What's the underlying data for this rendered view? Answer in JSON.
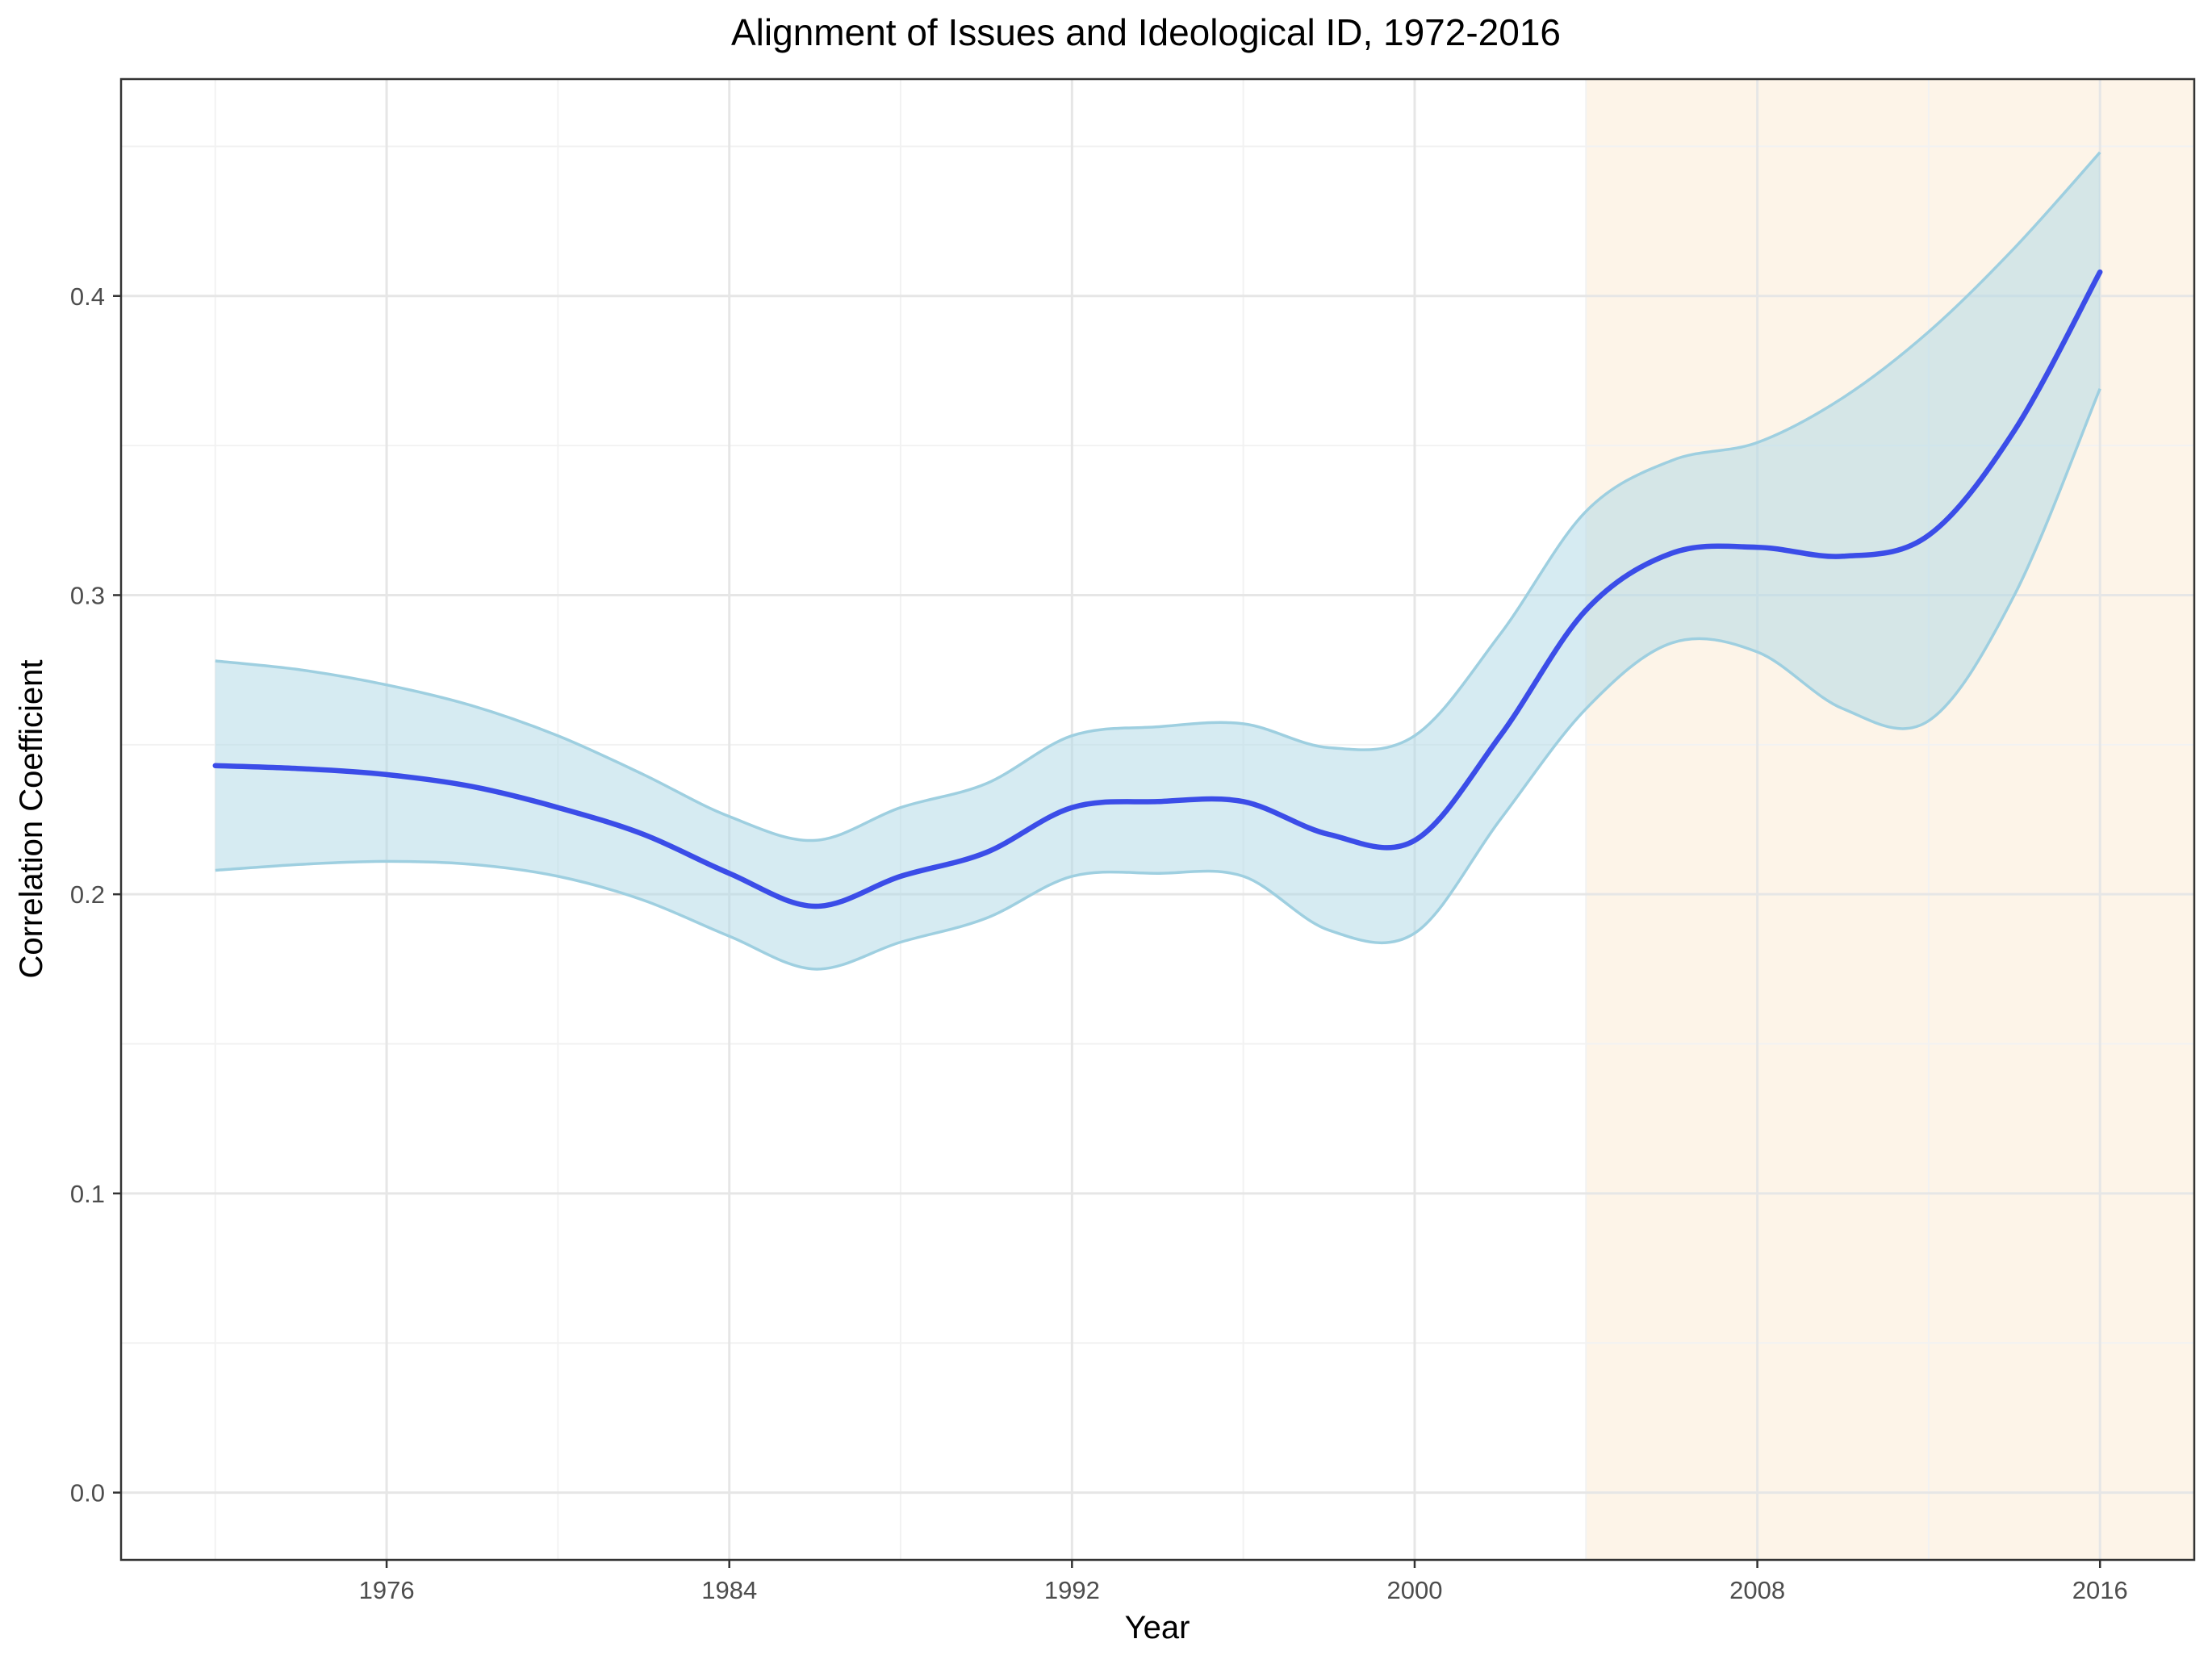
{
  "chart_data": {
    "type": "line",
    "title": "Alignment of Issues and Ideological ID, 1972-2016",
    "xlabel": "Year",
    "ylabel": "Correlation Coefficient",
    "xlim": [
      1969.8,
      2018.2
    ],
    "ylim": [
      -0.0225,
      0.4725
    ],
    "x_ticks": [
      1976,
      1984,
      1992,
      2000,
      2008,
      2016
    ],
    "x_tick_labels": [
      "1976",
      "1984",
      "1992",
      "2000",
      "2008",
      "2016"
    ],
    "x_minor_ticks": [
      1972,
      1980,
      1988,
      1996,
      2004,
      2012
    ],
    "y_ticks": [
      0.0,
      0.1,
      0.2,
      0.3,
      0.4
    ],
    "y_tick_labels": [
      "0.0",
      "0.1",
      "0.2",
      "0.3",
      "0.4"
    ],
    "y_minor_ticks": [
      0.05,
      0.15,
      0.25,
      0.35,
      0.45
    ],
    "grid": true,
    "highlight_region": {
      "x_start": 2004,
      "x_end": 2018.2,
      "color": "#fdf4e8"
    },
    "colors": {
      "line": "#3b4de8",
      "ribbon_fill": "#add8e6",
      "ribbon_edge": "#9ecfe0",
      "panel_border": "#333333"
    },
    "series": [
      {
        "x": [
          1972,
          1974,
          1976,
          1978,
          1980,
          1982,
          1984,
          1986,
          1988,
          1990,
          1992,
          1994,
          1996,
          1998,
          2000,
          2002,
          2004,
          2006,
          2008,
          2010,
          2012,
          2014,
          2016
        ],
        "y": [
          0.243,
          0.242,
          0.24,
          0.236,
          0.229,
          0.22,
          0.207,
          0.196,
          0.206,
          0.214,
          0.229,
          0.231,
          0.231,
          0.22,
          0.218,
          0.253,
          0.295,
          0.314,
          0.316,
          0.313,
          0.32,
          0.355,
          0.408
        ],
        "lower": [
          0.208,
          0.21,
          0.211,
          0.21,
          0.206,
          0.198,
          0.186,
          0.175,
          0.184,
          0.192,
          0.206,
          0.207,
          0.206,
          0.188,
          0.187,
          0.225,
          0.262,
          0.284,
          0.281,
          0.262,
          0.258,
          0.3,
          0.369
        ],
        "upper": [
          0.278,
          0.275,
          0.27,
          0.263,
          0.253,
          0.24,
          0.226,
          0.218,
          0.229,
          0.237,
          0.253,
          0.256,
          0.257,
          0.249,
          0.253,
          0.287,
          0.328,
          0.345,
          0.351,
          0.366,
          0.388,
          0.416,
          0.448
        ]
      }
    ]
  }
}
